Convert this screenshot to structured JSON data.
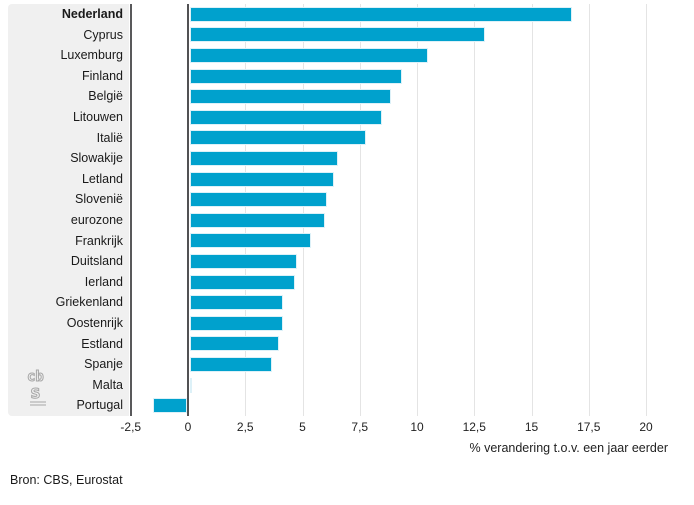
{
  "chart_data": {
    "type": "bar",
    "orientation": "horizontal",
    "title": "",
    "xlabel": "% verandering t.o.v. een jaar eerder",
    "ylabel": "",
    "xlim": [
      -2.5,
      20
    ],
    "grid": true,
    "bar_color": "#00a1cd",
    "axis_color": "#59595b",
    "panel_color": "#f0f0f0",
    "highlight_category": "Nederland",
    "categories": [
      "Nederland",
      "Cyprus",
      "Luxemburg",
      "Finland",
      "België",
      "Litouwen",
      "Italië",
      "Slowakije",
      "Letland",
      "Slovenië",
      "eurozone",
      "Frankrijk",
      "Duitsland",
      "Ierland",
      "Griekenland",
      "Oostenrijk",
      "Estland",
      "Spanje",
      "Malta",
      "Portugal"
    ],
    "values": [
      16.7,
      12.9,
      10.4,
      9.3,
      8.8,
      8.4,
      7.7,
      6.5,
      6.3,
      6.0,
      5.9,
      5.3,
      4.7,
      4.6,
      4.1,
      4.1,
      3.9,
      3.6,
      0.1,
      -1.5
    ],
    "xtick_values": [
      -2.5,
      0,
      2.5,
      5,
      7.5,
      10,
      12.5,
      15,
      17.5,
      20
    ],
    "xtick_labels": [
      "-2,5",
      "0",
      "2,5",
      "5",
      "7,5",
      "10",
      "12,5",
      "15",
      "17,5",
      "20"
    ]
  },
  "source": {
    "label": "Bron: CBS, Eurostat"
  },
  "logo": {
    "name": "cbs",
    "line1": "cb",
    "line2": "s"
  }
}
